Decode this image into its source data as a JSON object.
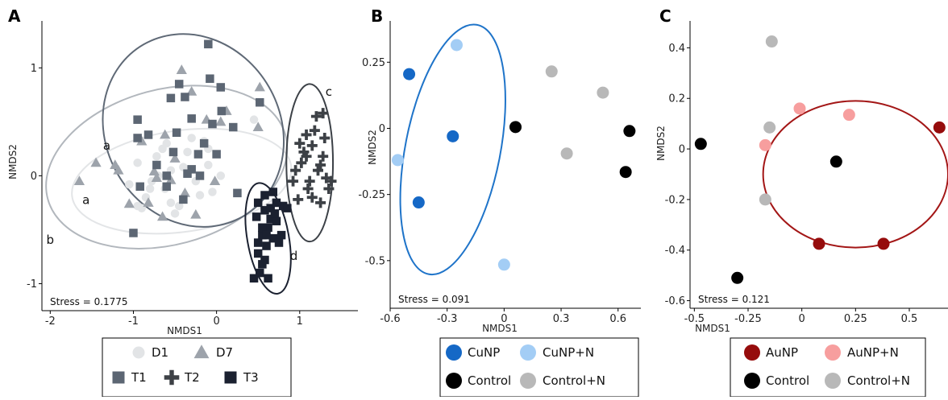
{
  "chart_data": [
    {
      "type": "scatter",
      "panel_label": "A",
      "xlabel": "NMDS1",
      "ylabel": "NMDS2",
      "xlim": [
        -2.1,
        1.7
      ],
      "ylim": [
        -1.25,
        1.42
      ],
      "xticks": [
        -2,
        -1,
        0,
        1
      ],
      "yticks": [
        -1,
        0,
        1
      ],
      "grid": false,
      "stress": "Stress = 0.1775",
      "legend_position": "bottom",
      "series": [
        {
          "name": "D1",
          "marker": "circle",
          "color": "#e2e4e6",
          "x": [
            -0.95,
            -0.72,
            -0.55,
            -0.78,
            -0.62,
            -0.35,
            -0.1,
            -0.85,
            -0.45,
            -0.2,
            -0.6,
            -0.3,
            -1.05,
            -0.5,
            -0.15,
            0.05,
            -0.7,
            -0.9,
            -0.25,
            -0.4,
            -0.8,
            -0.05,
            0.45,
            -0.55,
            -0.65,
            -0.1,
            -0.95
          ],
          "y": [
            0.12,
            0.18,
            0.05,
            -0.05,
            -0.12,
            0.22,
            0.1,
            -0.2,
            -0.28,
            -0.18,
            0.3,
            0.35,
            -0.08,
            -0.35,
            0.32,
            0.0,
            0.0,
            -0.3,
            -0.05,
            0.08,
            -0.12,
            -0.15,
            0.52,
            -0.25,
            0.25,
            0.25,
            -0.28
          ]
        },
        {
          "name": "D7",
          "marker": "triangle",
          "color": "#9da3ab",
          "x": [
            -1.65,
            -1.45,
            -1.22,
            -1.18,
            -0.72,
            -0.42,
            0.05,
            0.52,
            0.5,
            -0.3,
            -0.62,
            -0.9,
            -0.5,
            -0.38,
            -0.12,
            -0.02,
            -0.82,
            -1.05,
            -0.25,
            -0.55,
            -0.65,
            0.12,
            -0.75
          ],
          "y": [
            -0.05,
            0.12,
            0.1,
            0.05,
            -0.02,
            0.98,
            0.5,
            0.82,
            0.45,
            0.78,
            0.38,
            0.32,
            0.16,
            -0.16,
            0.52,
            -0.05,
            -0.25,
            -0.26,
            -0.36,
            -0.04,
            -0.38,
            0.6,
            0.04
          ]
        },
        {
          "name": "T1",
          "marker": "square",
          "color": "#5c6673",
          "x": [
            -0.95,
            -0.82,
            -0.48,
            -0.6,
            -0.92,
            -0.3,
            -0.08,
            0.05,
            0.06,
            -0.38,
            -0.22,
            -0.52,
            0.0,
            -0.15,
            -0.72,
            -0.35,
            -0.05,
            0.2,
            0.52,
            -0.45,
            -0.3,
            0.25,
            -0.6,
            -0.95,
            -1.0,
            -0.1,
            -0.4,
            -0.55,
            -0.2
          ],
          "y": [
            0.52,
            0.38,
            0.4,
            0.0,
            -0.1,
            0.53,
            0.9,
            0.82,
            0.6,
            0.73,
            0.2,
            0.22,
            0.2,
            0.3,
            0.1,
            0.02,
            0.48,
            0.45,
            0.68,
            0.85,
            0.06,
            -0.16,
            -0.1,
            0.35,
            -0.53,
            1.22,
            -0.22,
            0.72,
            0.0
          ]
        },
        {
          "name": "T2",
          "marker": "plus",
          "color": "#3d4146",
          "x": [
            1.2,
            1.08,
            1.15,
            1.28,
            1.02,
            0.95,
            1.22,
            1.32,
            1.1,
            0.98,
            1.25,
            1.35,
            1.05,
            1.18,
            1.3,
            1.0,
            1.12,
            1.25,
            0.92,
            1.38,
            1.15,
            1.08,
            1.28
          ],
          "y": [
            0.55,
            0.38,
            0.28,
            0.18,
            0.12,
            0.05,
            0.05,
            -0.02,
            -0.12,
            -0.22,
            -0.25,
            -0.12,
            0.22,
            0.42,
            0.35,
            0.3,
            -0.05,
            0.1,
            -0.05,
            -0.05,
            -0.2,
            0.18,
            0.58
          ]
        },
        {
          "name": "T3",
          "marker": "square",
          "color": "#1b2130",
          "x": [
            0.5,
            0.58,
            0.65,
            0.62,
            0.55,
            0.72,
            0.68,
            0.6,
            0.5,
            0.58,
            0.78,
            0.8,
            0.65,
            0.72,
            0.48,
            0.55,
            0.85,
            0.52,
            0.62,
            0.7,
            0.75,
            0.45,
            0.5,
            0.58,
            0.68,
            0.55,
            0.6
          ],
          "y": [
            -0.25,
            -0.32,
            -0.4,
            -0.48,
            -0.55,
            -0.42,
            -0.58,
            -0.65,
            -0.72,
            -0.78,
            -0.55,
            -0.28,
            -0.3,
            -0.25,
            -0.38,
            -0.48,
            -0.3,
            -0.9,
            -0.95,
            -0.35,
            -0.62,
            -0.95,
            -0.62,
            -0.18,
            -0.15,
            -0.82,
            -0.55
          ]
        }
      ],
      "ellipses": [
        {
          "series": "D1",
          "color": "#e3e5e7",
          "cx": -0.42,
          "cy": -0.05,
          "rx": 1.33,
          "ry": 0.47,
          "angle_deg": 8
        },
        {
          "series": "D7",
          "color": "#b2b7bd",
          "cx": -0.6,
          "cy": 0.08,
          "rx": 1.48,
          "ry": 0.72,
          "angle_deg": 15
        },
        {
          "series": "T1",
          "color": "#5f6976",
          "cx": -0.28,
          "cy": 0.42,
          "rx": 1.05,
          "ry": 0.92,
          "angle_deg": 30
        },
        {
          "series": "T2",
          "color": "#3c4147",
          "cx": 1.12,
          "cy": 0.12,
          "rx": 0.28,
          "ry": 0.73,
          "angle_deg": 0
        },
        {
          "series": "T3",
          "color": "#1b2130",
          "cx": 0.62,
          "cy": -0.58,
          "rx": 0.25,
          "ry": 0.52,
          "angle_deg": 10
        }
      ],
      "group_letters": [
        {
          "text": "a",
          "x": -1.32,
          "y": 0.24
        },
        {
          "text": "a",
          "x": -1.57,
          "y": -0.26
        },
        {
          "text": "b",
          "x": -2.0,
          "y": -0.63
        },
        {
          "text": "c",
          "x": 1.35,
          "y": 0.74
        },
        {
          "text": "d",
          "x": 0.93,
          "y": -0.78
        }
      ]
    },
    {
      "type": "scatter",
      "panel_label": "B",
      "xlabel": "NMDS1",
      "ylabel": "NMDS2",
      "xlim": [
        -0.6,
        0.72
      ],
      "ylim": [
        -0.68,
        0.4
      ],
      "xticks": [
        -0.6,
        -0.3,
        0,
        0.3,
        0.6
      ],
      "yticks": [
        0.25,
        0,
        -0.25,
        -0.5
      ],
      "grid": false,
      "stress": "Stress = 0.091",
      "legend_position": "bottom",
      "series": [
        {
          "name": "CuNP",
          "color": "#1568c6",
          "x": [
            -0.5,
            -0.27,
            -0.45
          ],
          "y": [
            0.205,
            -0.03,
            -0.28
          ]
        },
        {
          "name": "CuNP+N",
          "color": "#a3cdf5",
          "x": [
            -0.25,
            -0.56,
            0.0
          ],
          "y": [
            0.315,
            -0.12,
            -0.515
          ]
        },
        {
          "name": "Control",
          "color": "#000000",
          "x": [
            0.06,
            0.66,
            0.64
          ],
          "y": [
            0.005,
            -0.01,
            -0.165
          ]
        },
        {
          "name": "Control+N",
          "color": "#b8b8b8",
          "x": [
            0.25,
            0.52,
            0.33
          ],
          "y": [
            0.215,
            0.135,
            -0.095
          ]
        }
      ],
      "ellipses": [
        {
          "series": "CuNP",
          "color": "#1f74c9",
          "cx": -0.27,
          "cy": -0.08,
          "rx": 0.25,
          "ry": 0.48,
          "angle_deg": -11
        }
      ]
    },
    {
      "type": "scatter",
      "panel_label": "C",
      "xlabel": "NMDS1",
      "ylabel": "NMDS2",
      "xlim": [
        -0.52,
        0.68
      ],
      "ylim": [
        -0.63,
        0.5
      ],
      "xticks": [
        -0.5,
        -0.25,
        0,
        0.25,
        0.5
      ],
      "yticks": [
        0.4,
        0.2,
        0,
        -0.2,
        -0.4,
        -0.6
      ],
      "grid": false,
      "stress": "Stress = 0.121",
      "legend_position": "bottom",
      "series": [
        {
          "name": "AuNP",
          "color": "#960c0c",
          "x": [
            0.64,
            0.08,
            0.38
          ],
          "y": [
            0.085,
            -0.375,
            -0.375
          ]
        },
        {
          "name": "AuNP+N",
          "color": "#f79e9e",
          "x": [
            -0.01,
            0.22,
            -0.17
          ],
          "y": [
            0.16,
            0.135,
            0.015
          ]
        },
        {
          "name": "Control",
          "color": "#000000",
          "x": [
            -0.47,
            0.16,
            -0.3
          ],
          "y": [
            0.02,
            -0.05,
            -0.51
          ]
        },
        {
          "name": "Control+N",
          "color": "#b8b8b8",
          "x": [
            -0.14,
            -0.15,
            -0.17
          ],
          "y": [
            0.425,
            0.085,
            -0.2
          ]
        }
      ],
      "ellipses": [
        {
          "series": "AuNP",
          "color": "#a31616",
          "cx": 0.25,
          "cy": -0.1,
          "rx": 0.43,
          "ry": 0.29,
          "angle_deg": 0
        }
      ]
    }
  ]
}
